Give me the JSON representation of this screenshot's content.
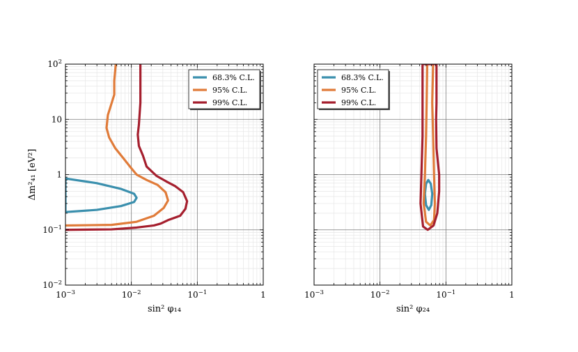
{
  "chart_data": [
    {
      "type": "line",
      "xlabel": "sin² φ₁₄",
      "ylabel": "Δm²₄₁ [eV²]",
      "xscale": "log",
      "yscale": "log",
      "xlim": [
        0.001,
        1
      ],
      "ylim": [
        0.01,
        100
      ],
      "x_ticks": [
        {
          "value": 0.001,
          "base": "10",
          "exp": "−3"
        },
        {
          "value": 0.01,
          "base": "10",
          "exp": "−2"
        },
        {
          "value": 0.1,
          "base": "10",
          "exp": "−1"
        },
        {
          "value": 1,
          "base": "1",
          "exp": ""
        }
      ],
      "y_ticks": [
        {
          "value": 0.01,
          "base": "10",
          "exp": "−2"
        },
        {
          "value": 0.1,
          "base": "10",
          "exp": "−1"
        },
        {
          "value": 1,
          "base": "1",
          "exp": ""
        },
        {
          "value": 10,
          "base": "10",
          "exp": ""
        },
        {
          "value": 100,
          "base": "10",
          "exp": "2"
        }
      ],
      "grid": true,
      "legend_position": "top-right",
      "series": [
        {
          "name": "68.3% C.L.",
          "color": "#3a8fad",
          "closed": true,
          "points": [
            [
              0.001,
              0.85
            ],
            [
              0.003,
              0.7
            ],
            [
              0.007,
              0.55
            ],
            [
              0.011,
              0.45
            ],
            [
              0.012,
              0.38
            ],
            [
              0.011,
              0.32
            ],
            [
              0.007,
              0.27
            ],
            [
              0.003,
              0.23
            ],
            [
              0.001,
              0.21
            ]
          ]
        },
        {
          "name": "95% C.L.",
          "color": "#e07b39",
          "closed": false,
          "points": [
            [
              0.001,
              0.12
            ],
            [
              0.005,
              0.123
            ],
            [
              0.012,
              0.14
            ],
            [
              0.022,
              0.18
            ],
            [
              0.031,
              0.25
            ],
            [
              0.036,
              0.34
            ],
            [
              0.033,
              0.48
            ],
            [
              0.025,
              0.65
            ],
            [
              0.017,
              0.8
            ],
            [
              0.012,
              1.0
            ],
            [
              0.0095,
              1.4
            ],
            [
              0.0075,
              2.0
            ],
            [
              0.0057,
              3.0
            ],
            [
              0.0046,
              4.7
            ],
            [
              0.0042,
              7.0
            ],
            [
              0.0044,
              12.0
            ],
            [
              0.0049,
              18.0
            ],
            [
              0.0055,
              28.0
            ],
            [
              0.0055,
              50.0
            ],
            [
              0.0058,
              100.0
            ]
          ]
        },
        {
          "name": "99% C.L.",
          "color": "#a51f2e",
          "closed": false,
          "points": [
            [
              0.001,
              0.1
            ],
            [
              0.005,
              0.102
            ],
            [
              0.012,
              0.11
            ],
            [
              0.022,
              0.12
            ],
            [
              0.028,
              0.13
            ],
            [
              0.036,
              0.15
            ],
            [
              0.055,
              0.18
            ],
            [
              0.066,
              0.24
            ],
            [
              0.07,
              0.33
            ],
            [
              0.061,
              0.48
            ],
            [
              0.046,
              0.62
            ],
            [
              0.034,
              0.75
            ],
            [
              0.024,
              0.95
            ],
            [
              0.017,
              1.4
            ],
            [
              0.015,
              2.2
            ],
            [
              0.013,
              3.3
            ],
            [
              0.0125,
              5.3
            ],
            [
              0.013,
              8.0
            ],
            [
              0.0137,
              20.0
            ],
            [
              0.0137,
              100.0
            ]
          ]
        }
      ]
    },
    {
      "type": "line",
      "xlabel": "sin² φ₂₄",
      "ylabel": "",
      "xscale": "log",
      "yscale": "log",
      "xlim": [
        0.001,
        1
      ],
      "ylim": [
        0.01,
        100
      ],
      "x_ticks": [
        {
          "value": 0.001,
          "base": "10",
          "exp": "−3"
        },
        {
          "value": 0.01,
          "base": "10",
          "exp": "−2"
        },
        {
          "value": 0.1,
          "base": "10",
          "exp": "−1"
        },
        {
          "value": 1,
          "base": "1",
          "exp": ""
        }
      ],
      "y_ticks": [],
      "grid": true,
      "legend_position": "top-left",
      "series": [
        {
          "name": "68.3% C.L.",
          "color": "#3a8fad",
          "closed": true,
          "points": [
            [
              0.054,
              0.8
            ],
            [
              0.059,
              0.68
            ],
            [
              0.062,
              0.45
            ],
            [
              0.06,
              0.28
            ],
            [
              0.055,
              0.23
            ],
            [
              0.05,
              0.28
            ],
            [
              0.048,
              0.45
            ],
            [
              0.05,
              0.68
            ]
          ]
        },
        {
          "name": "95% C.L.",
          "color": "#e07b39",
          "closed": true,
          "points": [
            [
              0.052,
              100.0
            ],
            [
              0.051,
              20.0
            ],
            [
              0.05,
              5.0
            ],
            [
              0.048,
              1.0
            ],
            [
              0.046,
              0.3
            ],
            [
              0.05,
              0.14
            ],
            [
              0.058,
              0.12
            ],
            [
              0.066,
              0.15
            ],
            [
              0.068,
              0.3
            ],
            [
              0.066,
              1.0
            ],
            [
              0.064,
              5.0
            ],
            [
              0.062,
              20.0
            ],
            [
              0.064,
              100.0
            ]
          ]
        },
        {
          "name": "99% C.L.",
          "color": "#a51f2e",
          "closed": true,
          "points": [
            [
              0.0442,
              100.0
            ],
            [
              0.0442,
              20.0
            ],
            [
              0.0442,
              5.0
            ],
            [
              0.0425,
              1.0
            ],
            [
              0.0412,
              0.3
            ],
            [
              0.045,
              0.115
            ],
            [
              0.053,
              0.1
            ],
            [
              0.065,
              0.12
            ],
            [
              0.074,
              0.2
            ],
            [
              0.079,
              0.5
            ],
            [
              0.079,
              1.0
            ],
            [
              0.072,
              3.0
            ],
            [
              0.071,
              10.0
            ],
            [
              0.072,
              20.0
            ],
            [
              0.072,
              100.0
            ]
          ]
        }
      ]
    }
  ]
}
